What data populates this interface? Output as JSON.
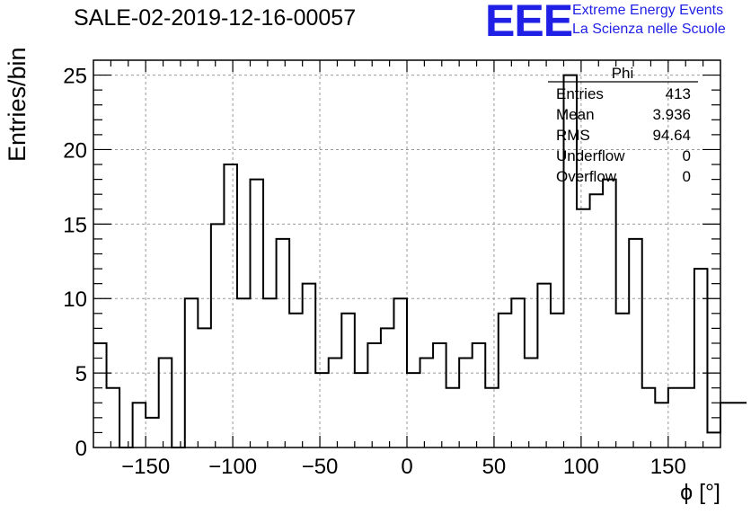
{
  "header": {
    "title": "SALE-02-2019-12-16-00057",
    "logo_text": "EEE",
    "logo_line1": "Extreme Energy Events",
    "logo_line2": "La Scienza nelle Scuole"
  },
  "stats_box": {
    "name": "Phi",
    "rows": [
      {
        "label": "Entries",
        "value": "413"
      },
      {
        "label": "Mean",
        "value": "3.936"
      },
      {
        "label": "RMS",
        "value": "94.64"
      },
      {
        "label": "Underflow",
        "value": "0"
      },
      {
        "label": "Overflow",
        "value": "0"
      }
    ]
  },
  "chart_data": {
    "type": "bar",
    "histogram": true,
    "title": "SALE-02-2019-12-16-00057",
    "xlabel": "ϕ [°]",
    "ylabel": "Entries/bin",
    "xlim": [
      -180,
      180
    ],
    "ylim": [
      0,
      26
    ],
    "bin_width": 7.5,
    "x_ticks": [
      -150,
      -100,
      -50,
      0,
      50,
      100,
      150
    ],
    "y_ticks": [
      0,
      5,
      10,
      15,
      20,
      25
    ],
    "grid": true,
    "values": [
      7,
      4,
      0,
      3,
      2,
      6,
      0,
      10,
      8,
      15,
      19,
      10,
      18,
      10,
      14,
      9,
      11,
      5,
      6,
      9,
      5,
      7,
      8,
      10,
      5,
      6,
      7,
      4,
      6,
      7,
      4,
      9,
      10,
      6,
      11,
      9,
      25,
      16,
      17,
      18,
      9,
      14,
      4,
      3,
      4,
      4,
      12,
      1,
      3,
      3
    ],
    "colors": {
      "line": "#000000",
      "grid": "#999999",
      "logo": "#1f1fe6"
    }
  }
}
